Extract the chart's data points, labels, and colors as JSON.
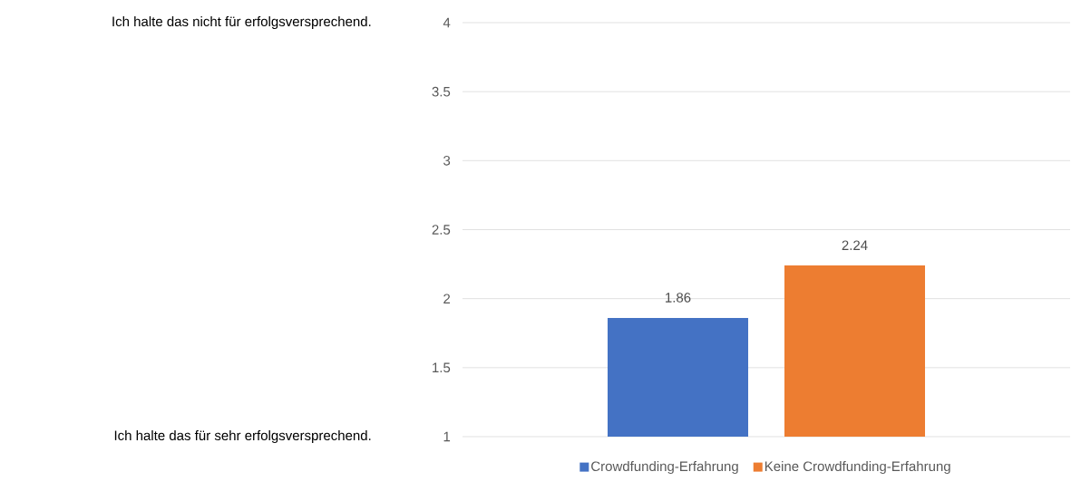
{
  "chart_data": {
    "type": "bar",
    "categories": [
      null
    ],
    "series": [
      {
        "name": "Crowdfunding-Erfahrung",
        "color": "#4472c4",
        "values": [
          1.86
        ]
      },
      {
        "name": "Keine Crowdfunding-Erfahrung",
        "color": "#ed7d31",
        "values": [
          2.24
        ]
      }
    ],
    "ylim": [
      1,
      4
    ],
    "yticks": [
      1,
      1.5,
      2,
      2.5,
      3,
      3.5,
      4
    ],
    "grid": "y",
    "legend": "bottom",
    "data_labels": true,
    "annotations": [
      "Ich halte das nicht für erfolgsversprechend.",
      "Ich halte das für sehr erfolgsversprechend."
    ]
  }
}
